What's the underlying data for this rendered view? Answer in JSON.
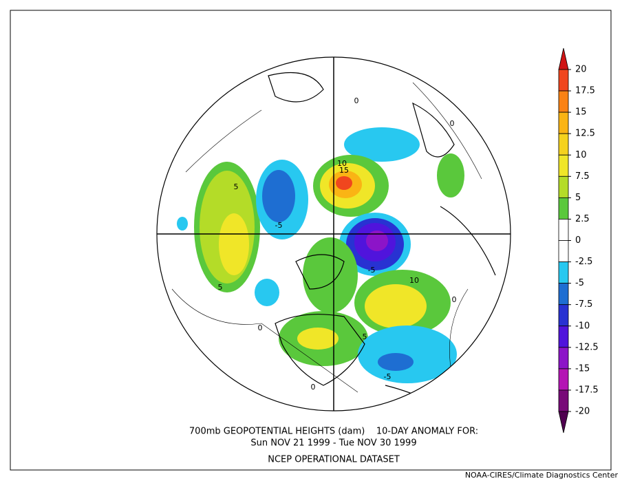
{
  "title_lines": [
    "700mb GEOPOTENTIAL HEIGHTS (dam)    10-DAY ANOMALY FOR:",
    "Sun NOV 21 1999 - Tue NOV 30 1999",
    "NCEP OPERATIONAL DATASET"
  ],
  "credit": "NOAA-CIRES/Climate Diagnostics Center",
  "colorbar": {
    "levels": [
      20,
      17.5,
      15,
      12.5,
      10,
      7.5,
      5,
      2.5,
      0,
      -2.5,
      -5,
      -7.5,
      -10,
      -12.5,
      -15,
      -17.5,
      -20
    ],
    "colors": [
      "#d01414",
      "#f0461e",
      "#fa8214",
      "#fab414",
      "#f5d21e",
      "#f0e628",
      "#b4dc28",
      "#5ac83c",
      "#ffffff",
      "#ffffff",
      "#28c8f0",
      "#1e6ed2",
      "#2832d2",
      "#5014dc",
      "#8c14c8",
      "#b414b4",
      "#780a78",
      "#500050"
    ]
  },
  "contour_labels": [
    "5",
    "-5",
    "5",
    "0",
    "10",
    "15",
    "-5",
    "10",
    "0",
    "0",
    "5",
    "-5",
    "0",
    "0"
  ]
}
